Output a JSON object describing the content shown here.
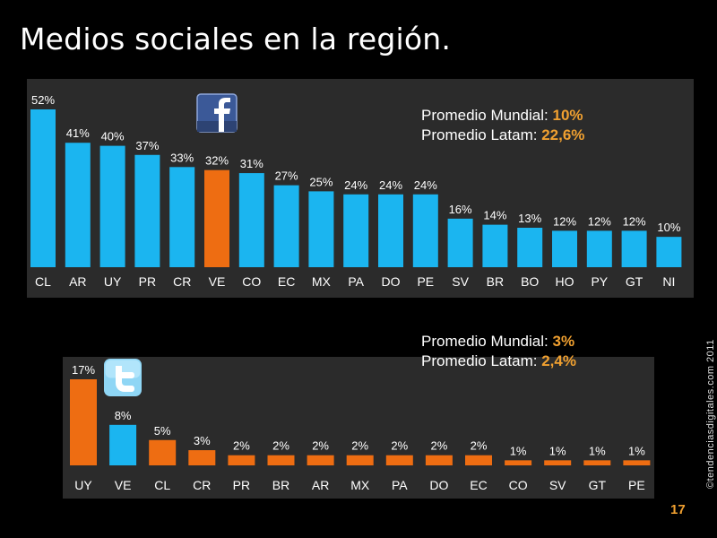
{
  "slide": {
    "title": "Medios sociales en la región.",
    "credit": "©tendenciasdigitales.com 2011",
    "page_number": "17"
  },
  "facebook_panel": {
    "logo_icon": "facebook-logo-icon",
    "avg_world_label": "Promedio Mundial:",
    "avg_world_value": "10%",
    "avg_latam_label": "Promedio Latam:",
    "avg_latam_value": "22,6%"
  },
  "twitter_panel": {
    "logo_icon": "twitter-logo-icon",
    "avg_world_label": "Promedio Mundial:",
    "avg_world_value": "3%",
    "avg_latam_label": "Promedio Latam:",
    "avg_latam_value": "2,4%"
  },
  "colors": {
    "blue": "#1bb5f0",
    "orange": "#ee6d12",
    "accent": "#f0a030",
    "panel": "#2b2b2b"
  },
  "chart_data": [
    {
      "type": "bar",
      "categories": [
        "CL",
        "AR",
        "UY",
        "PR",
        "CR",
        "VE",
        "CO",
        "EC",
        "MX",
        "PA",
        "DO",
        "PE",
        "SV",
        "BR",
        "BO",
        "HO",
        "PY",
        "GT",
        "NI"
      ],
      "values": [
        52,
        41,
        40,
        37,
        33,
        32,
        31,
        27,
        25,
        24,
        24,
        24,
        16,
        14,
        13,
        12,
        12,
        12,
        10
      ],
      "value_labels": [
        "52%",
        "41%",
        "40%",
        "37%",
        "33%",
        "32%",
        "31%",
        "27%",
        "25%",
        "24%",
        "24%",
        "24%",
        "16%",
        "14%",
        "13%",
        "12%",
        "12%",
        "12%",
        "10%"
      ],
      "bar_colors": [
        "blue",
        "blue",
        "blue",
        "blue",
        "blue",
        "orange",
        "blue",
        "blue",
        "blue",
        "blue",
        "blue",
        "blue",
        "blue",
        "blue",
        "blue",
        "blue",
        "blue",
        "blue",
        "blue"
      ],
      "ylim": [
        0,
        52
      ]
    },
    {
      "type": "bar",
      "categories": [
        "UY",
        "VE",
        "CL",
        "CR",
        "PR",
        "BR",
        "AR",
        "MX",
        "PA",
        "DO",
        "EC",
        "CO",
        "SV",
        "GT",
        "PE"
      ],
      "values": [
        17,
        8,
        5,
        3,
        2,
        2,
        2,
        2,
        2,
        2,
        2,
        1,
        1,
        1,
        1
      ],
      "value_labels": [
        "17%",
        "8%",
        "5%",
        "3%",
        "2%",
        "2%",
        "2%",
        "2%",
        "2%",
        "2%",
        "2%",
        "1%",
        "1%",
        "1%",
        "1%"
      ],
      "bar_colors": [
        "orange",
        "blue",
        "orange",
        "orange",
        "orange",
        "orange",
        "orange",
        "orange",
        "orange",
        "orange",
        "orange",
        "orange",
        "orange",
        "orange",
        "orange"
      ],
      "ylim": [
        0,
        17
      ]
    }
  ]
}
